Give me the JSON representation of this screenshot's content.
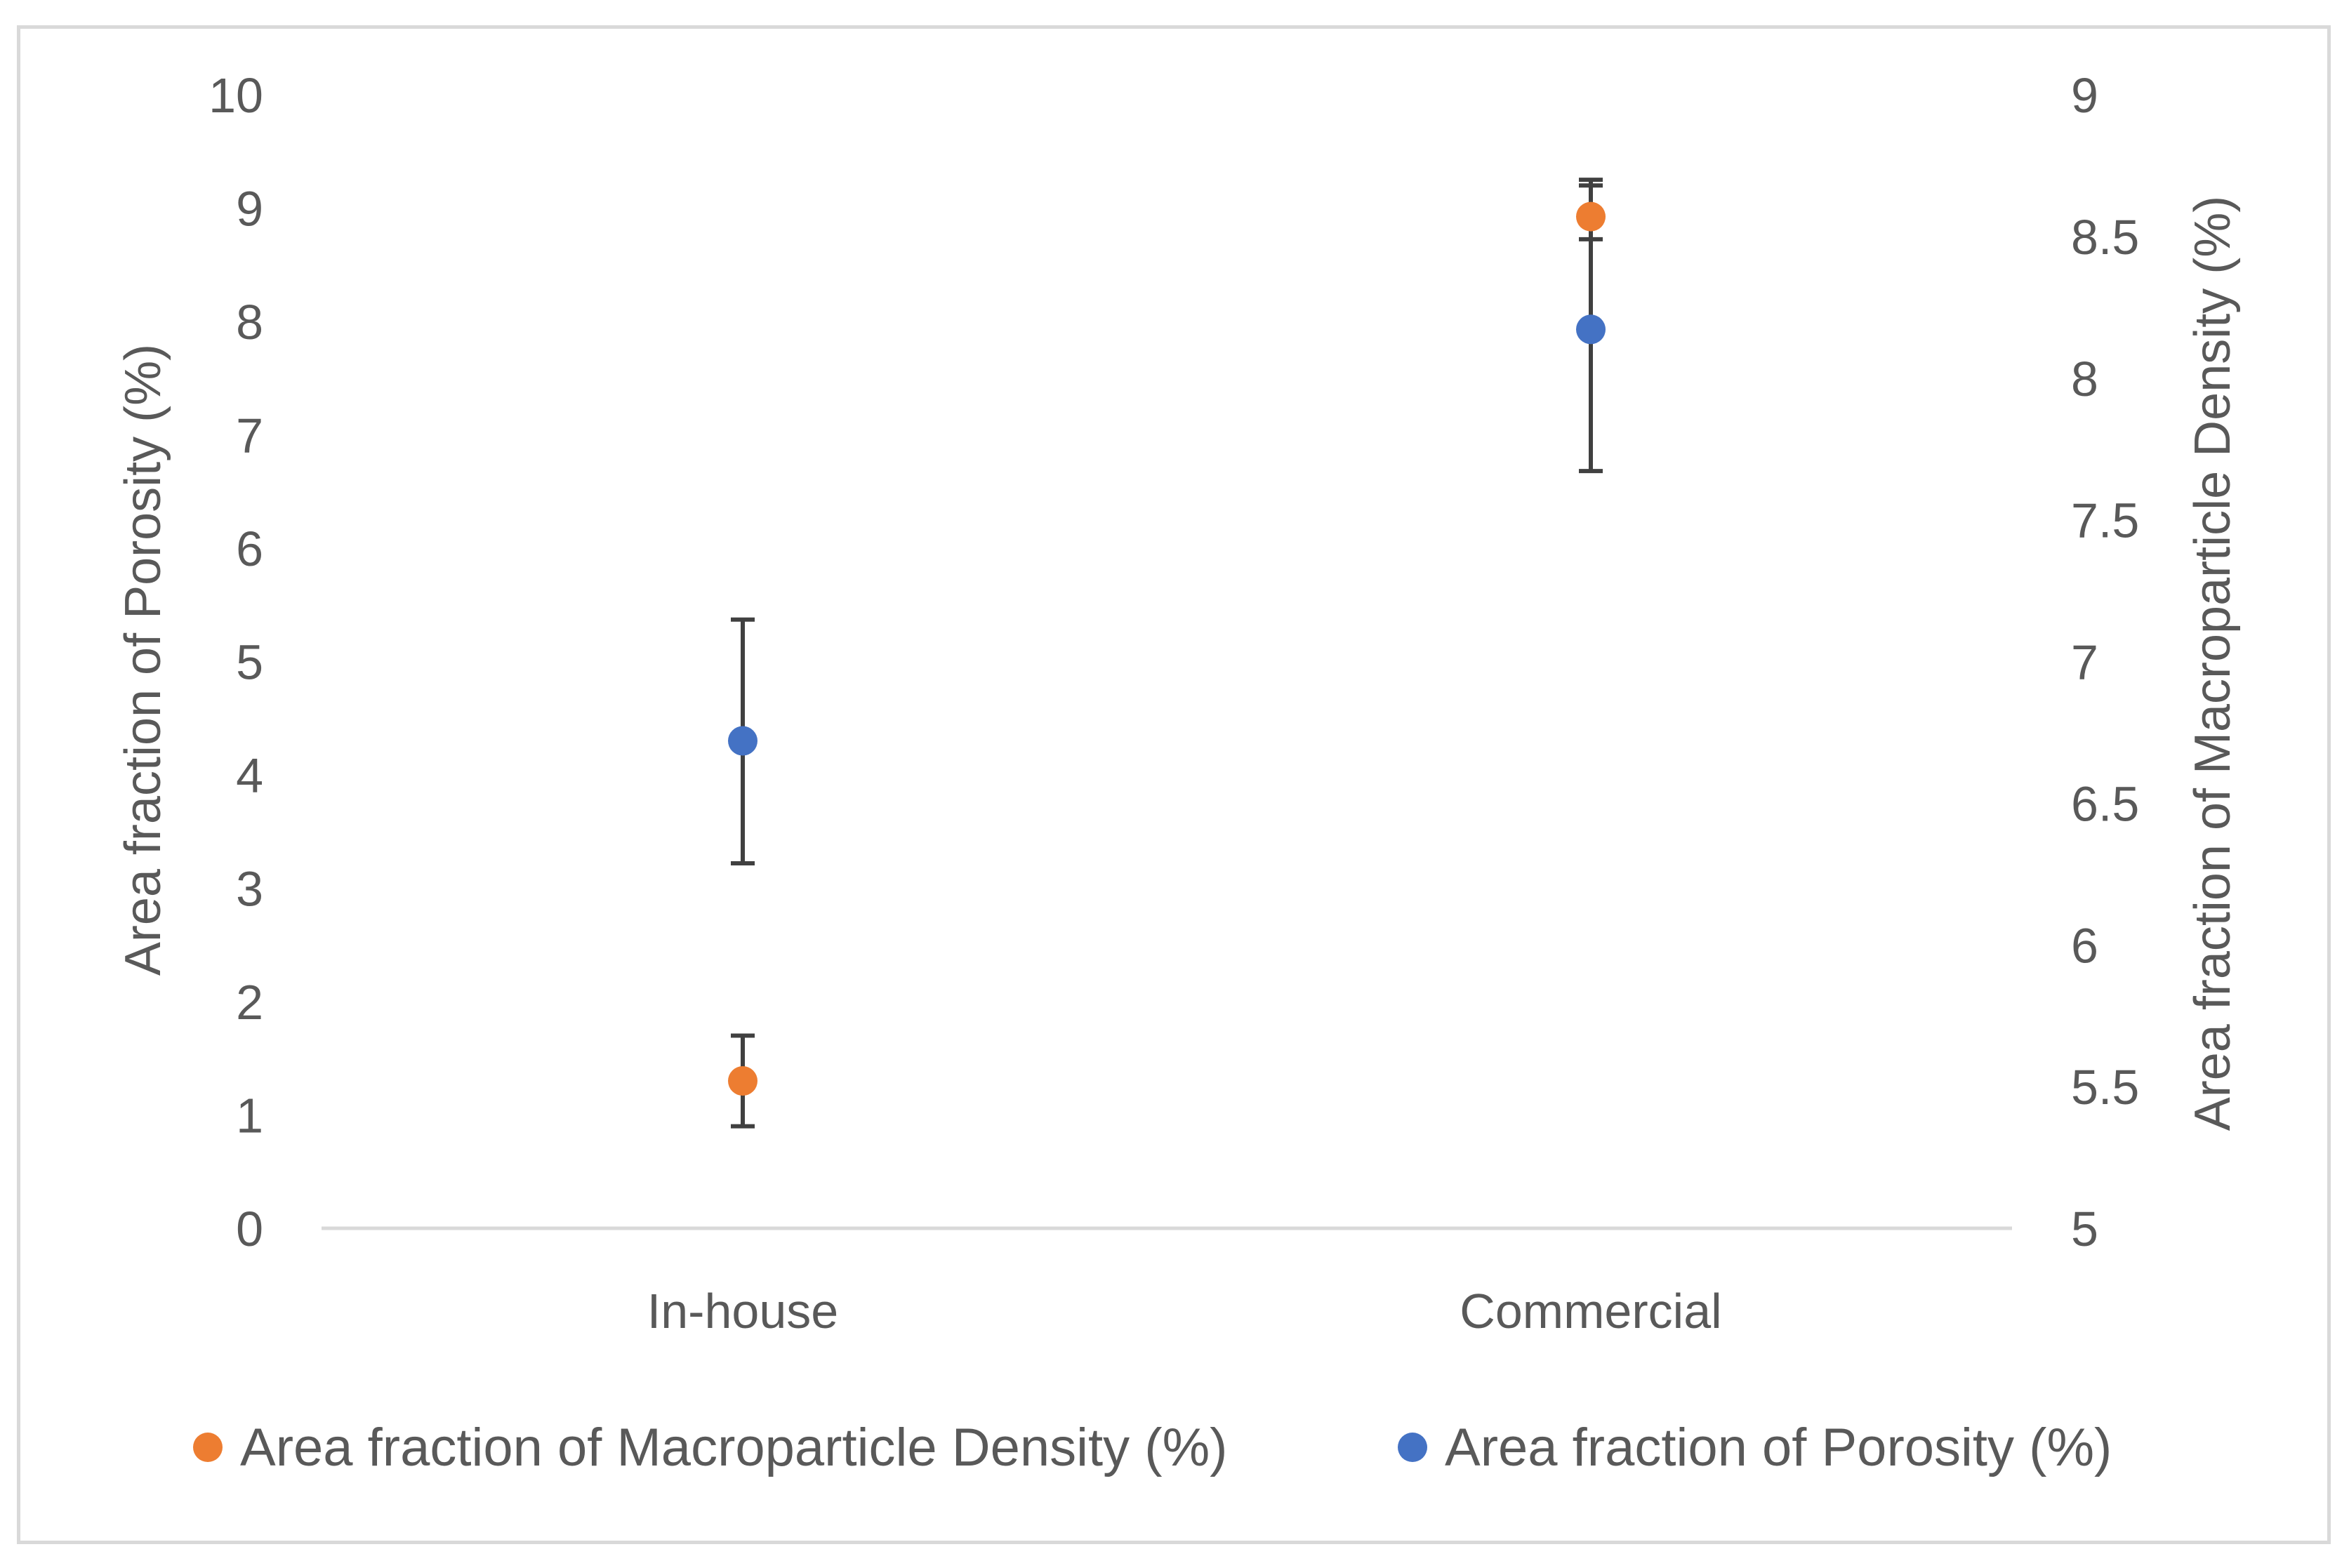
{
  "chart_data": {
    "type": "scatter",
    "title": "",
    "categories": [
      "In-house",
      "Commercial"
    ],
    "y_left": {
      "label": "Area fraction of Porosity (%)",
      "range": [
        0,
        10
      ],
      "ticks": [
        "0",
        "1",
        "2",
        "3",
        "4",
        "5",
        "6",
        "7",
        "8",
        "9",
        "10"
      ]
    },
    "y_right": {
      "label": "Area fraction of Macroparticle Density (%)",
      "range": [
        5,
        9
      ],
      "ticks": [
        "5",
        "5.5",
        "6",
        "6.5",
        "7",
        "7.5",
        "8",
        "8.5",
        "9"
      ]
    },
    "series": [
      {
        "name": "Area fraction of Macroparticle Density (%)",
        "axis": "right",
        "color": "#ed7d31",
        "values": [
          5.52,
          8.57
        ],
        "error_low": [
          5.36,
          8.49
        ],
        "error_high": [
          5.68,
          8.7
        ]
      },
      {
        "name": "Area fraction of Porosity (%)",
        "axis": "left",
        "color": "#4472c4",
        "values": [
          4.3,
          7.93
        ],
        "error_low": [
          3.22,
          6.68
        ],
        "error_high": [
          5.37,
          9.2
        ]
      }
    ],
    "legend_position": "bottom",
    "grid": false,
    "error_bar_color": "#404040",
    "baseline_color": "#d9d9d9"
  }
}
